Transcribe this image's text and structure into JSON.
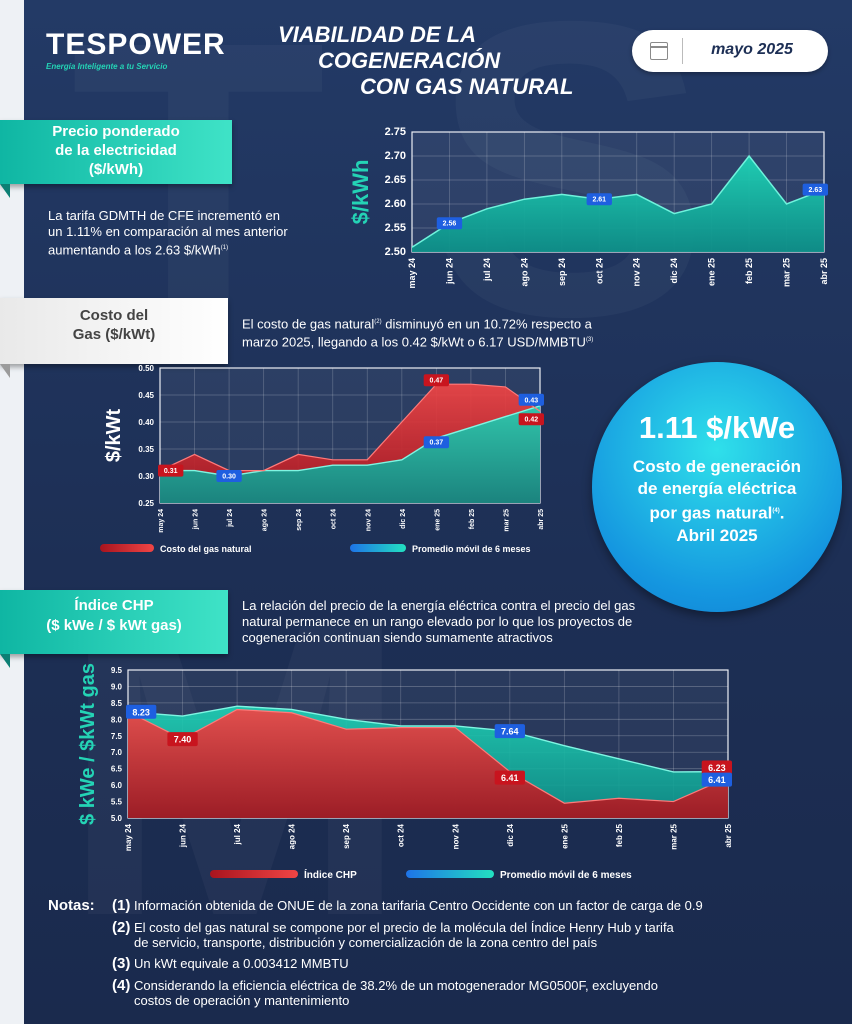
{
  "header": {
    "logo_main": "TESPOWER",
    "logo_tagline": "Energía Inteligente a tu Servicio",
    "title_lines": [
      "VIABILIDAD DE LA",
      "COGENERACIÓN",
      "CON GAS NATURAL"
    ],
    "date": "mayo 2025",
    "calendar_icon": "calendar-icon"
  },
  "sections": {
    "electricity": {
      "ribbon": [
        "Precio ponderado",
        "de la electricidad",
        "($/kWh)"
      ],
      "text_lines": [
        "La tarifa GDMTH de CFE incrementó en",
        "un 1.11% en comparación al mes anterior",
        "aumentando a los 2.63 $/kWh"
      ],
      "note_ref": "(1)"
    },
    "gas": {
      "ribbon": [
        "Costo del",
        "Gas ($/kWt)"
      ],
      "text_lines": [
        "El costo de gas natural",
        "disminuyó en un 10.72% respecto a",
        "marzo 2025, llegando a los 0.42 $/kWt o 6.17 USD/MMBTU"
      ],
      "note_ref_1": "(2)",
      "note_ref_2": "(3)"
    },
    "chp": {
      "ribbon": [
        "Índice CHP",
        "($ kWe / $ kWt gas)"
      ],
      "text_lines": [
        "La relación del precio de la energía eléctrica contra el precio del gas",
        "natural permanece en un rango elevado por lo que los proyectos de",
        "cogeneración continuan siendo sumamente atractivos"
      ]
    }
  },
  "highlight": {
    "value": "1.11 $/kWe",
    "text_lines": [
      "Costo de generación",
      "de energía eléctrica",
      "por gas natural",
      "Abril 2025"
    ],
    "note_ref": "(4)"
  },
  "chart_data": [
    {
      "type": "area",
      "ylabel": "$/kWh",
      "ylim": [
        2.5,
        2.75
      ],
      "yticks": [
        "2.50",
        "2.55",
        "2.60",
        "2.65",
        "2.70",
        "2.75"
      ],
      "categories": [
        "may 24",
        "jun 24",
        "jul 24",
        "ago 24",
        "sep 24",
        "oct 24",
        "nov 24",
        "dic 24",
        "ene 25",
        "feb 25",
        "mar 25",
        "abr 25"
      ],
      "series": [
        {
          "values": [
            2.51,
            2.56,
            2.59,
            2.61,
            2.62,
            2.61,
            2.62,
            2.58,
            2.6,
            2.7,
            2.6,
            2.63
          ]
        }
      ],
      "labels": [
        {
          "index": 1,
          "text": "2.56"
        },
        {
          "index": 5,
          "text": "2.61"
        },
        {
          "index": 11,
          "text": "2.63"
        }
      ],
      "grid": true
    },
    {
      "type": "area",
      "ylabel": "$/kWt",
      "ylim": [
        0.25,
        0.5
      ],
      "yticks": [
        "0.25",
        "0.30",
        "0.35",
        "0.40",
        "0.45",
        "0.50"
      ],
      "categories": [
        "may 24",
        "jun 24",
        "jul 24",
        "ago 24",
        "sep 24",
        "oct 24",
        "nov 24",
        "dic 24",
        "ene 25",
        "feb 25",
        "mar 25",
        "abr 25"
      ],
      "series": [
        {
          "name": "Costo del gas natural",
          "values": [
            0.31,
            0.34,
            0.31,
            0.31,
            0.34,
            0.33,
            0.33,
            0.4,
            0.47,
            0.47,
            0.465,
            0.42
          ]
        },
        {
          "name": "Promedio móvil de 6 meses",
          "values": [
            0.31,
            0.31,
            0.3,
            0.31,
            0.31,
            0.32,
            0.32,
            0.33,
            0.37,
            0.39,
            0.41,
            0.43
          ]
        }
      ],
      "labels": [
        {
          "series": 0,
          "index": 0,
          "text": "0.31"
        },
        {
          "series": 1,
          "index": 2,
          "text": "0.30"
        },
        {
          "series": 0,
          "index": 8,
          "text": "0.47"
        },
        {
          "series": 1,
          "index": 8,
          "text": "0.37"
        },
        {
          "series": 1,
          "index": 11,
          "text": "0.43"
        },
        {
          "series": 0,
          "index": 11,
          "text": "0.42"
        }
      ],
      "legend": "bottom",
      "grid": true
    },
    {
      "type": "area",
      "ylabel": "$ kWe / $kWt gas",
      "ylim": [
        5.0,
        9.5
      ],
      "yticks": [
        "5.0",
        "5.5",
        "6.0",
        "6.5",
        "7.0",
        "7.5",
        "8.0",
        "8.5",
        "9.0",
        "9.5"
      ],
      "categories": [
        "may 24",
        "jun 24",
        "jul 24",
        "ago 24",
        "sep 24",
        "oct 24",
        "nov 24",
        "dic 24",
        "ene 25",
        "feb 25",
        "mar 25",
        "abr 25"
      ],
      "series": [
        {
          "name": "Índice CHP",
          "values": [
            8.23,
            7.4,
            8.3,
            8.2,
            7.7,
            7.75,
            7.75,
            6.41,
            5.45,
            5.6,
            5.5,
            6.23
          ]
        },
        {
          "name": "Promedio móvil de 6 meses",
          "values": [
            8.23,
            8.1,
            8.4,
            8.3,
            8.0,
            7.8,
            7.8,
            7.64,
            7.2,
            6.8,
            6.4,
            6.41
          ]
        }
      ],
      "labels": [
        {
          "series": 1,
          "index": 0,
          "text": "8.23"
        },
        {
          "series": 0,
          "index": 1,
          "text": "7.40"
        },
        {
          "series": 1,
          "index": 7,
          "text": "7.64"
        },
        {
          "series": 0,
          "index": 7,
          "text": "6.41"
        },
        {
          "series": 0,
          "index": 11,
          "text": "6.23"
        },
        {
          "series": 1,
          "index": 11,
          "text": "6.41"
        }
      ],
      "legend": "bottom",
      "grid": true
    }
  ],
  "notes": {
    "label": "Notas:",
    "items": [
      {
        "num": "(1)",
        "lines": [
          "Información obtenida de ONUE de la zona tarifaria Centro Occidente con un factor de carga de 0.9"
        ]
      },
      {
        "num": "(2)",
        "lines": [
          "El costo del gas natural se compone por el precio de la molécula del Índice Henry Hub y tarifa",
          "de servicio, transporte, distribución y comercialización de la zona centro del país"
        ]
      },
      {
        "num": "(3)",
        "lines": [
          "Un kWt equivale a 0.003412 MMBTU"
        ]
      },
      {
        "num": "(4)",
        "lines": [
          "Considerando la eficiencia eléctrica de 38.2% de un motogenerador MG0500F, excluyendo",
          "costos de operación y mantenimiento"
        ]
      }
    ]
  },
  "colors": {
    "teal": "#24d3b5",
    "red": "#e02a2a",
    "blue": "#1e73e8",
    "navy": "#1f3157"
  }
}
